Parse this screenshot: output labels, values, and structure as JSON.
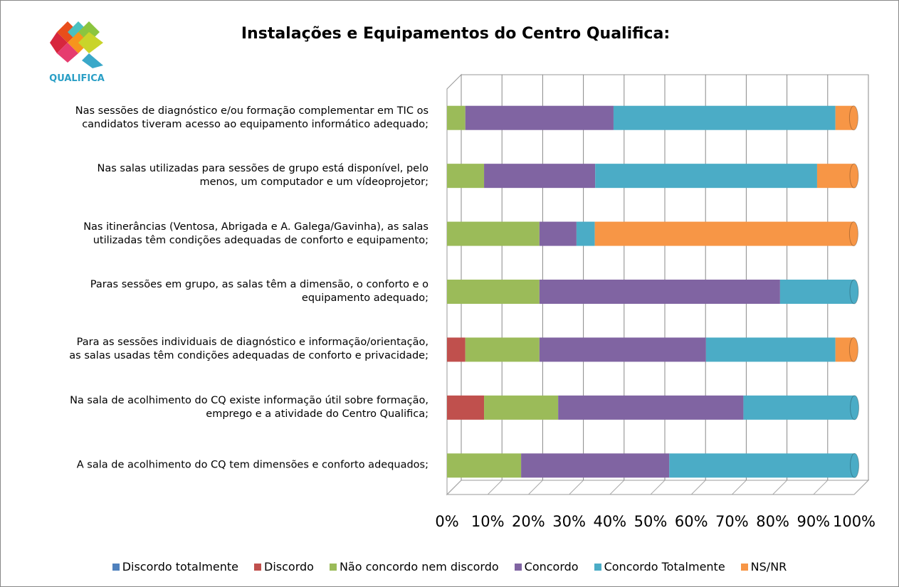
{
  "logo_text": "QUALIFICA",
  "chart_data": {
    "type": "stacked-bar-horizontal",
    "title": "Instalações e Equipamentos do Centro Qualifica:",
    "categories": [
      "Nas sessões de diagnóstico e/ou formação complementar em TIC os\ncandidatos tiveram acesso ao equipamento informático adequado;",
      "Nas salas utilizadas para sessões de grupo está disponível, pelo\nmenos, um computador e um vídeoprojetor;",
      "Nas itinerâncias (Ventosa, Abrigada e A. Galega/Gavinha), as salas\nutilizadas têm condições adequadas de conforto e equipamento;",
      "Paras sessões em grupo, as salas têm a dimensão, o conforto e o\nequipamento adequado;",
      "Para as sessões individuais de diagnóstico e informação/orientação,\nas salas usadas têm condições adequadas de conforto e privacidade;",
      "Na sala de acolhimento do CQ existe informação útil sobre formação,\nemprego e a atividade do Centro Qualifica;",
      "A sala de acolhimento do CQ tem dimensões e conforto adequados;"
    ],
    "series": [
      {
        "name": "Discordo totalmente",
        "color": "#4f81bd",
        "values": [
          0,
          0,
          0,
          0,
          0,
          0,
          0
        ]
      },
      {
        "name": "Discordo",
        "color": "#c0504d",
        "values": [
          0,
          0,
          0,
          0,
          4.5,
          9.1,
          0
        ]
      },
      {
        "name": "Não concordo nem discordo",
        "color": "#9bbb59",
        "values": [
          4.5,
          9.1,
          22.7,
          22.7,
          18.2,
          18.2,
          18.2
        ]
      },
      {
        "name": "Concordo",
        "color": "#8064a2",
        "values": [
          36.4,
          27.3,
          9.1,
          59.1,
          40.9,
          45.5,
          36.4
        ]
      },
      {
        "name": "Concordo Totalmente",
        "color": "#4bacc6",
        "values": [
          54.5,
          54.5,
          4.5,
          18.2,
          31.8,
          27.3,
          45.5
        ]
      },
      {
        "name": "NS/NR",
        "color": "#f79646",
        "values": [
          4.5,
          9.1,
          63.6,
          0,
          4.5,
          0,
          0
        ]
      }
    ],
    "xlim": [
      0,
      100
    ],
    "xticks": [
      {
        "value": 0,
        "label": "0%"
      },
      {
        "value": 10,
        "label": "10%"
      },
      {
        "value": 20,
        "label": "20%"
      },
      {
        "value": 30,
        "label": "30%"
      },
      {
        "value": 40,
        "label": "40%"
      },
      {
        "value": 50,
        "label": "50%"
      },
      {
        "value": 60,
        "label": "60%"
      },
      {
        "value": 70,
        "label": "70%"
      },
      {
        "value": 80,
        "label": "80%"
      },
      {
        "value": 90,
        "label": "90%"
      },
      {
        "value": 100,
        "label": "100%"
      }
    ],
    "grid": true,
    "legend": "bottom"
  }
}
